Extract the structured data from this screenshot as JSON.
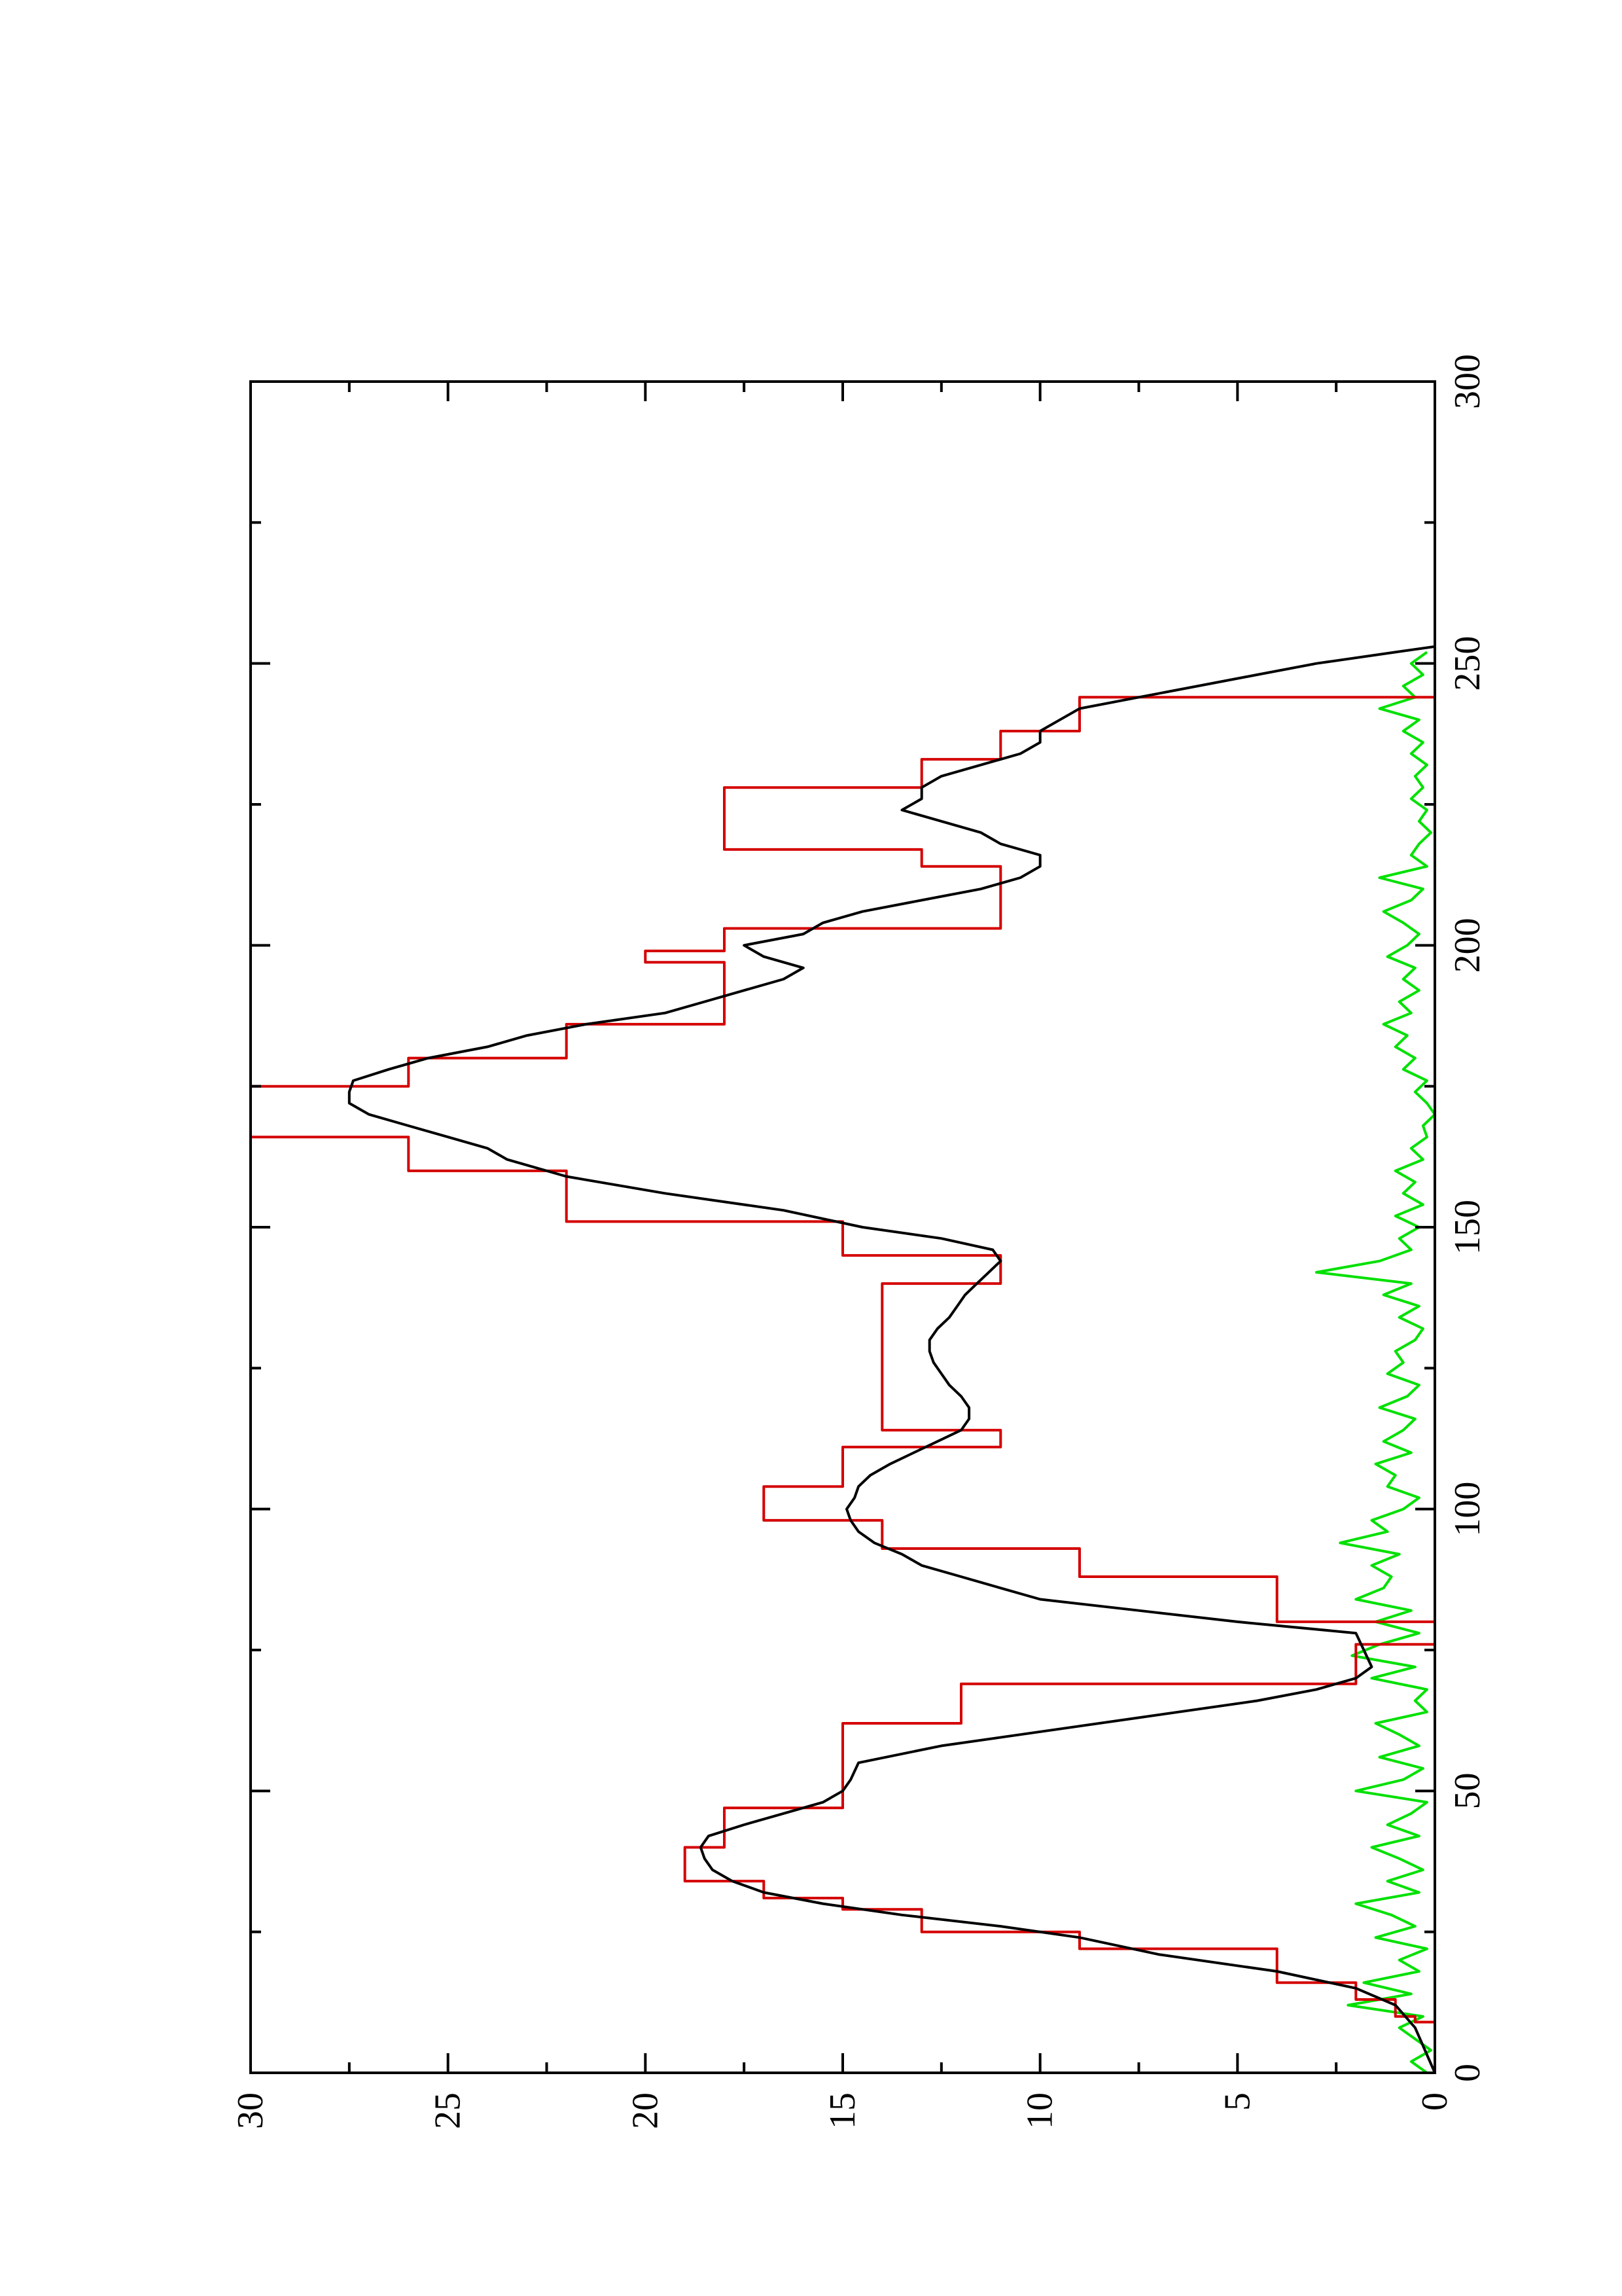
{
  "chart_data": {
    "type": "line",
    "orientation": "rotated-90-ccw",
    "title": "",
    "xlabel": "",
    "ylabel": "",
    "xlim": [
      0,
      300
    ],
    "ylim": [
      0,
      30
    ],
    "x_ticks": [
      0,
      50,
      100,
      150,
      200,
      250,
      300
    ],
    "y_ticks": [
      0,
      5,
      10,
      15,
      20,
      25,
      30
    ],
    "grid": false,
    "legend": "none",
    "colors": {
      "red": "#d40000",
      "black": "#000000",
      "green": "#00e000"
    },
    "series": [
      {
        "color": "#d40000",
        "x": [
          0,
          9,
          9,
          10,
          10,
          13,
          13,
          16,
          16,
          22,
          22,
          25,
          25,
          29,
          29,
          31,
          31,
          34,
          34,
          36,
          36,
          39,
          39,
          40,
          40,
          47,
          47,
          55,
          55,
          62,
          62,
          69,
          69,
          76,
          76,
          80,
          80,
          88,
          88,
          93,
          93,
          98,
          98,
          104,
          104,
          111,
          111,
          114,
          114,
          121,
          121,
          140,
          140,
          145,
          145,
          151,
          151,
          160,
          160,
          166,
          166,
          167,
          167,
          175,
          175,
          180,
          180,
          186,
          186,
          190,
          190,
          197,
          197,
          199,
          199,
          203,
          203,
          211,
          211,
          214,
          214,
          217,
          217,
          224,
          224,
          228,
          228,
          233,
          233,
          238,
          238,
          244,
          244,
          253,
          253
        ],
        "y": [
          0,
          0,
          0.5,
          0.5,
          1.0,
          1.0,
          2.0,
          2.0,
          4.0,
          4.0,
          9.0,
          9.0,
          13.0,
          13.0,
          15.0,
          15.0,
          17.0,
          17.0,
          19.0,
          19.0,
          19.0,
          19.0,
          19.0,
          19.0,
          18.0,
          18.0,
          15.0,
          15.0,
          15.0,
          15.0,
          12.0,
          12.0,
          2.0,
          2.0,
          0,
          0,
          4.0,
          4.0,
          9.0,
          9.0,
          14.0,
          14.0,
          17.0,
          17.0,
          15.0,
          15.0,
          11.0,
          11.0,
          14.0,
          14.0,
          14.0,
          14.0,
          11.0,
          11.0,
          15.0,
          15.0,
          22.0,
          22.0,
          26.0,
          26.0,
          30.0,
          30.0,
          30.0,
          30.0,
          26.0,
          26.0,
          22.0,
          22.0,
          18.0,
          18.0,
          18.0,
          18.0,
          20.0,
          20.0,
          18.0,
          18.0,
          11.0,
          11.0,
          11.0,
          11.0,
          13.0,
          13.0,
          18.0,
          18.0,
          18.0,
          18.0,
          13.0,
          13.0,
          11.0,
          11.0,
          9.0,
          9.0,
          0,
          0,
          0
        ]
      },
      {
        "color": "#000000",
        "x": [
          0,
          8,
          12,
          15,
          18,
          21,
          24,
          26,
          28,
          30,
          32,
          34,
          36,
          38,
          40,
          42,
          44,
          46,
          48,
          50,
          52,
          55,
          58,
          60,
          63,
          66,
          68,
          70,
          72,
          75,
          78,
          80,
          82,
          84,
          86,
          88,
          90,
          92,
          94,
          96,
          98,
          100,
          102,
          104,
          106,
          108,
          110,
          112,
          114,
          116,
          118,
          120,
          122,
          124,
          126,
          128,
          130,
          132,
          134,
          136,
          138,
          140,
          142,
          144,
          146,
          148,
          150,
          153,
          156,
          159,
          162,
          164,
          166,
          168,
          170,
          172,
          174,
          176,
          178,
          180,
          182,
          184,
          186,
          188,
          190,
          192,
          194,
          196,
          198,
          200,
          202,
          204,
          206,
          208,
          210,
          212,
          214,
          216,
          218,
          220,
          222,
          224,
          226,
          228,
          230,
          232,
          234,
          236,
          238,
          240,
          242,
          244,
          246,
          248,
          250,
          252,
          253
        ],
        "y": [
          0,
          0.5,
          1.0,
          2.0,
          4.0,
          7.0,
          9.0,
          11.0,
          13.5,
          15.5,
          17.0,
          17.8,
          18.3,
          18.5,
          18.6,
          18.4,
          17.5,
          16.5,
          15.5,
          15.0,
          14.8,
          14.6,
          12.5,
          10.5,
          7.5,
          4.5,
          3.0,
          2.0,
          1.6,
          1.8,
          2.0,
          5.0,
          7.5,
          10.0,
          11.0,
          12.0,
          13.0,
          13.5,
          14.2,
          14.6,
          14.8,
          14.9,
          14.7,
          14.6,
          14.3,
          13.8,
          13.2,
          12.6,
          12.0,
          11.8,
          11.8,
          12.0,
          12.3,
          12.5,
          12.7,
          12.8,
          12.8,
          12.6,
          12.3,
          12.1,
          11.9,
          11.6,
          11.3,
          11.0,
          11.2,
          12.5,
          14.5,
          16.5,
          19.5,
          22.0,
          23.5,
          24.0,
          25.0,
          26.0,
          27.0,
          27.5,
          27.5,
          27.4,
          26.5,
          25.5,
          24.0,
          23.0,
          21.5,
          19.5,
          18.5,
          17.5,
          16.5,
          16.0,
          17.0,
          17.5,
          16.0,
          15.5,
          14.5,
          13.0,
          11.5,
          10.5,
          10.0,
          10.0,
          11.0,
          11.5,
          12.5,
          13.5,
          13.0,
          13.0,
          12.5,
          11.5,
          10.5,
          10.0,
          10.0,
          9.5,
          9.0,
          7.5,
          6.0,
          4.5,
          3.0,
          1.0,
          0
        ]
      },
      {
        "color": "#00e000",
        "x": [
          0,
          2,
          4,
          6,
          8,
          10,
          12,
          14,
          16,
          18,
          20,
          22,
          24,
          26,
          28,
          30,
          32,
          34,
          36,
          38,
          40,
          42,
          44,
          46,
          48,
          50,
          52,
          54,
          56,
          58,
          60,
          62,
          64,
          66,
          68,
          70,
          72,
          74,
          76,
          78,
          80,
          82,
          84,
          86,
          88,
          90,
          92,
          94,
          96,
          98,
          100,
          102,
          104,
          106,
          108,
          110,
          112,
          114,
          116,
          118,
          120,
          122,
          124,
          126,
          128,
          130,
          132,
          134,
          136,
          138,
          140,
          142,
          144,
          146,
          148,
          150,
          152,
          154,
          156,
          158,
          160,
          162,
          164,
          166,
          168,
          170,
          172,
          174,
          176,
          178,
          180,
          182,
          184,
          186,
          188,
          190,
          192,
          194,
          196,
          198,
          200,
          202,
          204,
          206,
          208,
          210,
          212,
          214,
          216,
          218,
          220,
          222,
          224,
          226,
          228,
          230,
          232,
          234,
          236,
          238,
          240,
          242,
          244,
          246,
          248,
          250,
          252
        ],
        "y": [
          0.2,
          0.6,
          0.1,
          0.5,
          0.9,
          0.3,
          2.2,
          0.6,
          1.8,
          0.4,
          0.9,
          0.2,
          1.5,
          0.5,
          1.1,
          2.0,
          0.4,
          1.2,
          0.3,
          0.9,
          1.6,
          0.4,
          1.2,
          0.6,
          0.2,
          2.0,
          0.8,
          0.3,
          1.4,
          0.4,
          0.9,
          1.5,
          0.2,
          0.5,
          0.2,
          1.6,
          0.5,
          2.1,
          1.4,
          0.4,
          1.5,
          0.6,
          2.0,
          1.3,
          1.1,
          1.6,
          0.9,
          2.4,
          1.2,
          1.6,
          0.8,
          0.4,
          1.2,
          1.0,
          1.5,
          0.6,
          1.3,
          0.8,
          0.5,
          1.4,
          0.7,
          0.4,
          1.2,
          0.8,
          1.0,
          0.5,
          0.3,
          0.9,
          0.4,
          1.3,
          0.6,
          3.0,
          1.4,
          0.6,
          0.9,
          0.4,
          1.0,
          0.3,
          0.8,
          0.5,
          1.0,
          0.3,
          0.6,
          0.2,
          0.3,
          0.0,
          0.2,
          0.5,
          0.2,
          0.8,
          0.5,
          1.0,
          0.7,
          1.3,
          0.6,
          0.9,
          0.4,
          0.8,
          0.5,
          1.2,
          0.7,
          0.4,
          0.8,
          1.3,
          0.6,
          0.3,
          1.4,
          0.2,
          0.6,
          0.4,
          0.1,
          0.4,
          0.2,
          0.6,
          0.3,
          0.5,
          0.2,
          0.6,
          0.3,
          0.8,
          0.4,
          1.4,
          0.5,
          0.8,
          0.3,
          0.6,
          0.2
        ]
      }
    ]
  }
}
